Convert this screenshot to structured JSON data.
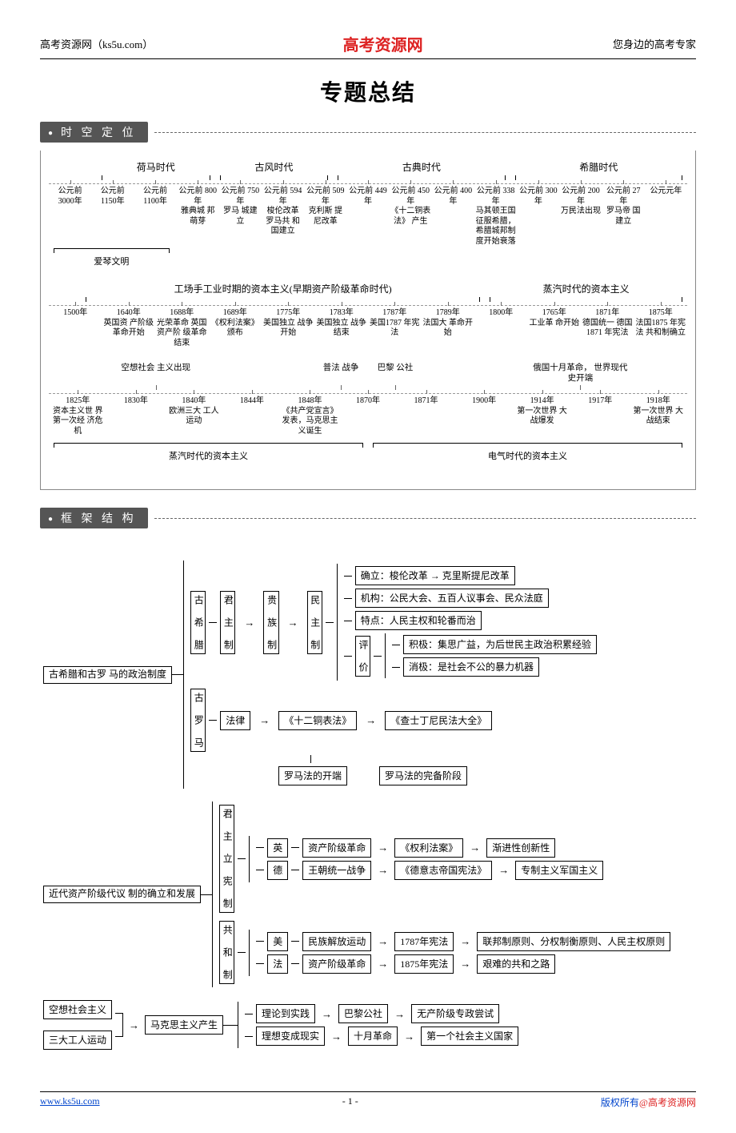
{
  "header": {
    "left": "高考资源网（ks5u.com）",
    "center": "高考资源网",
    "right": "您身边的高考专家"
  },
  "title": "专题总结",
  "sections": {
    "timeline_tag": "时 空 定 位",
    "framework_tag": "框 架 结 构"
  },
  "timeline": {
    "group1": {
      "eras": [
        {
          "label": "荷马时代",
          "flex": 2
        },
        {
          "label": "古风时代",
          "flex": 2
        },
        {
          "label": "古典时代",
          "flex": 3
        },
        {
          "label": "希腊时代",
          "flex": 3
        }
      ],
      "ticks": [
        {
          "yr": "公元前\n3000年",
          "ev": ""
        },
        {
          "yr": "公元前\n1150年",
          "ev": ""
        },
        {
          "yr": "公元前\n1100年",
          "ev": ""
        },
        {
          "yr": "公元前\n800年",
          "ev": "雅典城\n邦萌芽"
        },
        {
          "yr": "公元前\n750年",
          "ev": "罗马\n城建立"
        },
        {
          "yr": "公元前\n594年",
          "ev": "梭伦改革\n罗马共\n和国建立"
        },
        {
          "yr": "公元前\n509年",
          "ev": "克利斯\n提尼改革"
        },
        {
          "yr": "公元前\n449年",
          "ev": ""
        },
        {
          "yr": "公元前\n450年",
          "ev": "《十二铜表法》\n产生"
        },
        {
          "yr": "公元前\n400年",
          "ev": ""
        },
        {
          "yr": "公元前\n338年",
          "ev": "马其顿王国\n征服希腊，\n希腊城邦制\n度开始衰落"
        },
        {
          "yr": "公元前\n300年",
          "ev": ""
        },
        {
          "yr": "公元前\n200年",
          "ev": "万民法出现"
        },
        {
          "yr": "公元前\n27年",
          "ev": "罗马帝\n国建立"
        },
        {
          "yr": "公元元年",
          "ev": ""
        }
      ],
      "under_label": "爱琴文明"
    },
    "group2": {
      "eras": [
        {
          "label": "工场手工业时期的资本主义(早期资产阶级革命时代)",
          "flex": 6
        },
        {
          "label": "蒸汽时代的资本主义",
          "flex": 3
        }
      ],
      "ticks": [
        {
          "yr": "1500年",
          "ev": ""
        },
        {
          "yr": "1640年",
          "ev": "英国资\n产阶级\n革命开始"
        },
        {
          "yr": "1688年",
          "ev": "光荣革命\n英国资产阶\n级革命结束"
        },
        {
          "yr": "1689年",
          "ev": "《权利法案》\n颁布"
        },
        {
          "yr": "1775年",
          "ev": "美国独立\n战争开始"
        },
        {
          "yr": "1783年",
          "ev": "美国独立\n战争结束"
        },
        {
          "yr": "1787年",
          "ev": "美国1787\n年宪法"
        },
        {
          "yr": "1789年",
          "ev": "法国大\n革命开始"
        },
        {
          "yr": "1800年",
          "ev": ""
        },
        {
          "yr": "1765年",
          "ev": "工业革\n命开始"
        },
        {
          "yr": "1871年",
          "ev": "德国统一\n德国1871\n年宪法"
        },
        {
          "yr": "1875年",
          "ev": "法国1875\n年宪法\n共和制确立"
        }
      ]
    },
    "group3": {
      "above": [
        {
          "ev": "",
          "flex": 1
        },
        {
          "ev": "空想社会\n主义出现",
          "flex": 2
        },
        {
          "ev": "",
          "flex": 2
        },
        {
          "ev": "普法\n战争",
          "flex": 1
        },
        {
          "ev": "巴黎\n公社",
          "flex": 1
        },
        {
          "ev": "",
          "flex": 2
        },
        {
          "ev": "俄国十月革命，\n世界现代史开端",
          "flex": 2
        },
        {
          "ev": "",
          "flex": 1
        }
      ],
      "ticks": [
        {
          "yr": "1825年",
          "ev": "资本主义世\n界第一次经\n济危机"
        },
        {
          "yr": "1830年",
          "ev": ""
        },
        {
          "yr": "1840年",
          "ev": "欧洲三大\n工人运动"
        },
        {
          "yr": "1844年",
          "ev": ""
        },
        {
          "yr": "1848年",
          "ev": "《共产党宣言》\n发表，马克思主\n义诞生"
        },
        {
          "yr": "1870年",
          "ev": ""
        },
        {
          "yr": "1871年",
          "ev": ""
        },
        {
          "yr": "1900年",
          "ev": ""
        },
        {
          "yr": "1914年",
          "ev": "第一次世界\n大战爆发"
        },
        {
          "yr": "1917年",
          "ev": ""
        },
        {
          "yr": "1918年",
          "ev": "第一次世界\n大战结束"
        }
      ],
      "under_eras": [
        {
          "label": "蒸汽时代的资本主义",
          "flex": 5
        },
        {
          "label": "电气时代的资本主义",
          "flex": 5
        }
      ]
    }
  },
  "tree": {
    "root1": "古希腊和古罗\n马的政治制度",
    "greece": {
      "label": "古\n希\n腊",
      "monarchy": "君\n主\n制",
      "aristocracy": "贵\n族\n制",
      "democracy": "民\n主\n制",
      "items": [
        "确立：梭伦改革 → 克里斯提尼改革",
        "机构：公民大会、五百人议事会、民众法庭",
        "特点：人民主权和轮番而治"
      ],
      "eval_label": "评\n价",
      "eval_pos": "积极：集思广益，为后世民主政治积累经验",
      "eval_neg": "消极：是社会不公的暴力机器"
    },
    "rome": {
      "label": "古\n罗\n马",
      "law": "法律",
      "twelve": "《十二铜表法》",
      "corpus": "《查士丁尼民法大全》",
      "start": "罗马法的开端",
      "complete": "罗马法的完备阶段"
    },
    "root2": "近代资产阶级代议\n制的确立和发展",
    "const_mon": {
      "label": "君\n主\n立\n宪\n制"
    },
    "republic": {
      "label": "共\n和\n制"
    },
    "rows2": [
      {
        "c": "英",
        "a": "资产阶级革命",
        "b": "《权利法案》",
        "d": "渐进性创新性"
      },
      {
        "c": "德",
        "a": "王朝统一战争",
        "b": "《德意志帝国宪法》",
        "d": "专制主义军国主义"
      },
      {
        "c": "美",
        "a": "民族解放运动",
        "b": "1787年宪法",
        "d": "联邦制原则、分权制衡原则、人民主权原则"
      },
      {
        "c": "法",
        "a": "资产阶级革命",
        "b": "1875年宪法",
        "d": "艰难的共和之路"
      }
    ],
    "root3a": "空想社会主义",
    "root3b": "三大工人运动",
    "marx": "马克思主义产生",
    "rows3": [
      {
        "a": "理论到实践",
        "b": "巴黎公社",
        "c": "无产阶级专政尝试"
      },
      {
        "a": "理想变成现实",
        "b": "十月革命",
        "c": "第一个社会主义国家"
      }
    ]
  },
  "footer": {
    "left": "www.ks5u.com",
    "center": "- 1 -",
    "right_a": "版权所有",
    "right_b": "@高考资源网"
  }
}
